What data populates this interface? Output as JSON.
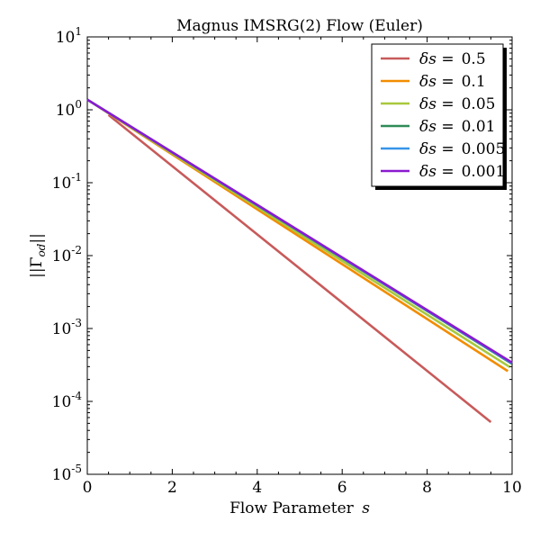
{
  "chart_data": {
    "type": "line",
    "title": "Magnus IMSRG(2) Flow (Euler)",
    "xlabel": "Flow Parameter s",
    "xlabel_text": "Flow Parameter",
    "xlabel_var": "s",
    "ylabel": "||Γod||",
    "xlim": [
      0,
      10
    ],
    "ylim": [
      1e-05,
      10
    ],
    "yscale": "log",
    "xticks": [
      0,
      2,
      4,
      6,
      8,
      10
    ],
    "yticks": [
      {
        "base": "10",
        "exp": "-5",
        "value": 1e-05
      },
      {
        "base": "10",
        "exp": "-4",
        "value": 0.0001
      },
      {
        "base": "10",
        "exp": "-3",
        "value": 0.001
      },
      {
        "base": "10",
        "exp": "-2",
        "value": 0.01
      },
      {
        "base": "10",
        "exp": "-1",
        "value": 0.1
      },
      {
        "base": "10",
        "exp": "0",
        "value": 1
      },
      {
        "base": "10",
        "exp": "1",
        "value": 10
      }
    ],
    "grid": false,
    "legend_position": "top-right",
    "legend_prefix": "δs =",
    "series": [
      {
        "name": "δs = 0.5",
        "label_value": "0.5",
        "color": "#c85a5a",
        "x": [
          0.5,
          9.5
        ],
        "y": [
          0.85,
          5.2e-05
        ]
      },
      {
        "name": "δs = 0.1",
        "label_value": "0.1",
        "color": "#f28c00",
        "x": [
          0,
          9.9
        ],
        "y": [
          1.38,
          0.00026
        ]
      },
      {
        "name": "δs = 0.05",
        "label_value": "0.05",
        "color": "#a8c83c",
        "x": [
          0,
          9.95
        ],
        "y": [
          1.38,
          0.000295
        ]
      },
      {
        "name": "δs = 0.01",
        "label_value": "0.01",
        "color": "#2e8b57",
        "x": [
          0,
          9.99
        ],
        "y": [
          1.38,
          0.00033
        ]
      },
      {
        "name": "δs = 0.005",
        "label_value": "0.005",
        "color": "#3794e8",
        "x": [
          0,
          9.995
        ],
        "y": [
          1.38,
          0.000335
        ]
      },
      {
        "name": "δs = 0.001",
        "label_value": "0.001",
        "color": "#8a1ad0",
        "x": [
          0,
          10
        ],
        "y": [
          1.38,
          0.00034
        ]
      }
    ]
  }
}
